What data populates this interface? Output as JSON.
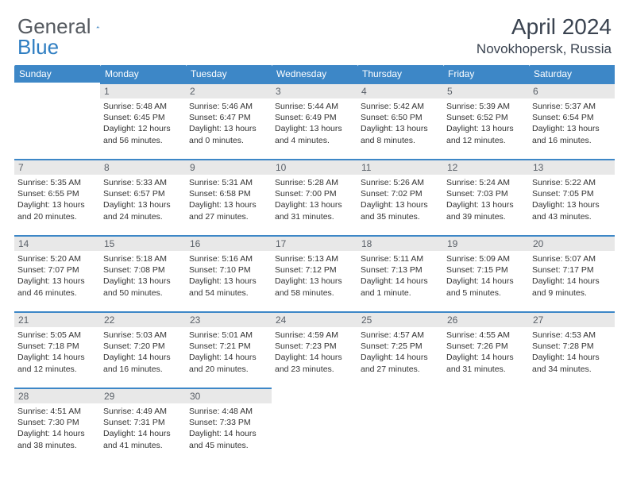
{
  "logo": {
    "text_a": "General",
    "text_b": "Blue"
  },
  "title": "April 2024",
  "location": "Novokhopersk, Russia",
  "day_headers": [
    "Sunday",
    "Monday",
    "Tuesday",
    "Wednesday",
    "Thursday",
    "Friday",
    "Saturday"
  ],
  "colors": {
    "header_bg": "#3d87c7",
    "header_text": "#ffffff",
    "daynum_bg": "#e8e8e8",
    "daynum_text": "#5a6068",
    "rule": "#3d87c7",
    "logo_gray": "#555a60",
    "logo_blue": "#2f7ec2"
  },
  "weeks": [
    [
      null,
      {
        "n": "1",
        "sunrise": "Sunrise: 5:48 AM",
        "sunset": "Sunset: 6:45 PM",
        "d1": "Daylight: 12 hours",
        "d2": "and 56 minutes."
      },
      {
        "n": "2",
        "sunrise": "Sunrise: 5:46 AM",
        "sunset": "Sunset: 6:47 PM",
        "d1": "Daylight: 13 hours",
        "d2": "and 0 minutes."
      },
      {
        "n": "3",
        "sunrise": "Sunrise: 5:44 AM",
        "sunset": "Sunset: 6:49 PM",
        "d1": "Daylight: 13 hours",
        "d2": "and 4 minutes."
      },
      {
        "n": "4",
        "sunrise": "Sunrise: 5:42 AM",
        "sunset": "Sunset: 6:50 PM",
        "d1": "Daylight: 13 hours",
        "d2": "and 8 minutes."
      },
      {
        "n": "5",
        "sunrise": "Sunrise: 5:39 AM",
        "sunset": "Sunset: 6:52 PM",
        "d1": "Daylight: 13 hours",
        "d2": "and 12 minutes."
      },
      {
        "n": "6",
        "sunrise": "Sunrise: 5:37 AM",
        "sunset": "Sunset: 6:54 PM",
        "d1": "Daylight: 13 hours",
        "d2": "and 16 minutes."
      }
    ],
    [
      {
        "n": "7",
        "sunrise": "Sunrise: 5:35 AM",
        "sunset": "Sunset: 6:55 PM",
        "d1": "Daylight: 13 hours",
        "d2": "and 20 minutes."
      },
      {
        "n": "8",
        "sunrise": "Sunrise: 5:33 AM",
        "sunset": "Sunset: 6:57 PM",
        "d1": "Daylight: 13 hours",
        "d2": "and 24 minutes."
      },
      {
        "n": "9",
        "sunrise": "Sunrise: 5:31 AM",
        "sunset": "Sunset: 6:58 PM",
        "d1": "Daylight: 13 hours",
        "d2": "and 27 minutes."
      },
      {
        "n": "10",
        "sunrise": "Sunrise: 5:28 AM",
        "sunset": "Sunset: 7:00 PM",
        "d1": "Daylight: 13 hours",
        "d2": "and 31 minutes."
      },
      {
        "n": "11",
        "sunrise": "Sunrise: 5:26 AM",
        "sunset": "Sunset: 7:02 PM",
        "d1": "Daylight: 13 hours",
        "d2": "and 35 minutes."
      },
      {
        "n": "12",
        "sunrise": "Sunrise: 5:24 AM",
        "sunset": "Sunset: 7:03 PM",
        "d1": "Daylight: 13 hours",
        "d2": "and 39 minutes."
      },
      {
        "n": "13",
        "sunrise": "Sunrise: 5:22 AM",
        "sunset": "Sunset: 7:05 PM",
        "d1": "Daylight: 13 hours",
        "d2": "and 43 minutes."
      }
    ],
    [
      {
        "n": "14",
        "sunrise": "Sunrise: 5:20 AM",
        "sunset": "Sunset: 7:07 PM",
        "d1": "Daylight: 13 hours",
        "d2": "and 46 minutes."
      },
      {
        "n": "15",
        "sunrise": "Sunrise: 5:18 AM",
        "sunset": "Sunset: 7:08 PM",
        "d1": "Daylight: 13 hours",
        "d2": "and 50 minutes."
      },
      {
        "n": "16",
        "sunrise": "Sunrise: 5:16 AM",
        "sunset": "Sunset: 7:10 PM",
        "d1": "Daylight: 13 hours",
        "d2": "and 54 minutes."
      },
      {
        "n": "17",
        "sunrise": "Sunrise: 5:13 AM",
        "sunset": "Sunset: 7:12 PM",
        "d1": "Daylight: 13 hours",
        "d2": "and 58 minutes."
      },
      {
        "n": "18",
        "sunrise": "Sunrise: 5:11 AM",
        "sunset": "Sunset: 7:13 PM",
        "d1": "Daylight: 14 hours",
        "d2": "and 1 minute."
      },
      {
        "n": "19",
        "sunrise": "Sunrise: 5:09 AM",
        "sunset": "Sunset: 7:15 PM",
        "d1": "Daylight: 14 hours",
        "d2": "and 5 minutes."
      },
      {
        "n": "20",
        "sunrise": "Sunrise: 5:07 AM",
        "sunset": "Sunset: 7:17 PM",
        "d1": "Daylight: 14 hours",
        "d2": "and 9 minutes."
      }
    ],
    [
      {
        "n": "21",
        "sunrise": "Sunrise: 5:05 AM",
        "sunset": "Sunset: 7:18 PM",
        "d1": "Daylight: 14 hours",
        "d2": "and 12 minutes."
      },
      {
        "n": "22",
        "sunrise": "Sunrise: 5:03 AM",
        "sunset": "Sunset: 7:20 PM",
        "d1": "Daylight: 14 hours",
        "d2": "and 16 minutes."
      },
      {
        "n": "23",
        "sunrise": "Sunrise: 5:01 AM",
        "sunset": "Sunset: 7:21 PM",
        "d1": "Daylight: 14 hours",
        "d2": "and 20 minutes."
      },
      {
        "n": "24",
        "sunrise": "Sunrise: 4:59 AM",
        "sunset": "Sunset: 7:23 PM",
        "d1": "Daylight: 14 hours",
        "d2": "and 23 minutes."
      },
      {
        "n": "25",
        "sunrise": "Sunrise: 4:57 AM",
        "sunset": "Sunset: 7:25 PM",
        "d1": "Daylight: 14 hours",
        "d2": "and 27 minutes."
      },
      {
        "n": "26",
        "sunrise": "Sunrise: 4:55 AM",
        "sunset": "Sunset: 7:26 PM",
        "d1": "Daylight: 14 hours",
        "d2": "and 31 minutes."
      },
      {
        "n": "27",
        "sunrise": "Sunrise: 4:53 AM",
        "sunset": "Sunset: 7:28 PM",
        "d1": "Daylight: 14 hours",
        "d2": "and 34 minutes."
      }
    ],
    [
      {
        "n": "28",
        "sunrise": "Sunrise: 4:51 AM",
        "sunset": "Sunset: 7:30 PM",
        "d1": "Daylight: 14 hours",
        "d2": "and 38 minutes."
      },
      {
        "n": "29",
        "sunrise": "Sunrise: 4:49 AM",
        "sunset": "Sunset: 7:31 PM",
        "d1": "Daylight: 14 hours",
        "d2": "and 41 minutes."
      },
      {
        "n": "30",
        "sunrise": "Sunrise: 4:48 AM",
        "sunset": "Sunset: 7:33 PM",
        "d1": "Daylight: 14 hours",
        "d2": "and 45 minutes."
      },
      null,
      null,
      null,
      null
    ]
  ]
}
